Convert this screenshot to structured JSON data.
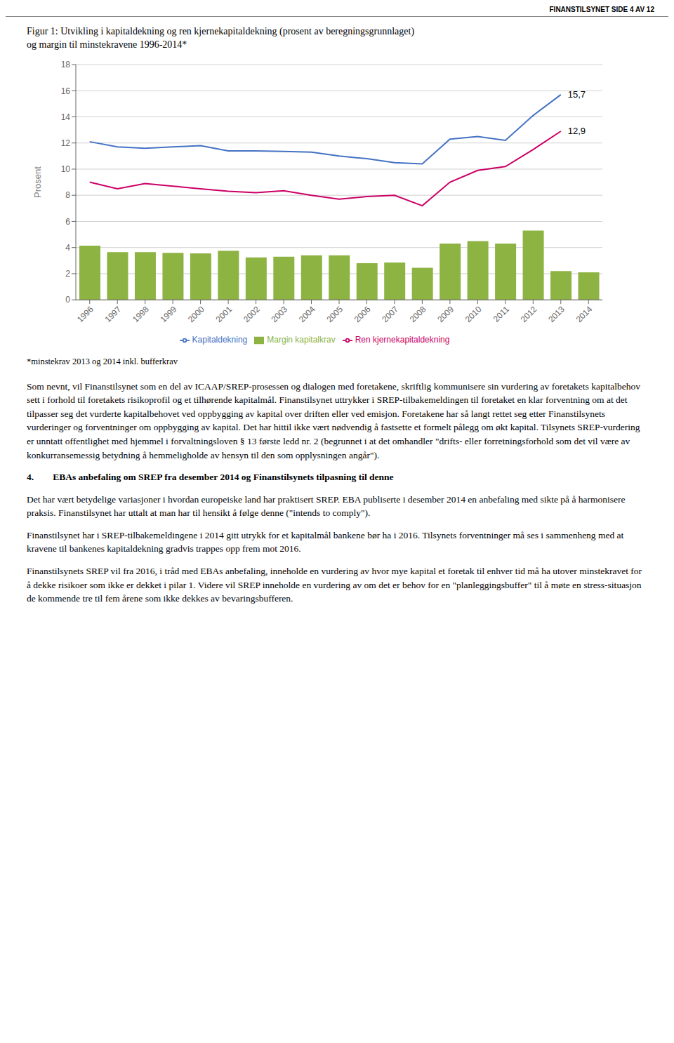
{
  "page": {
    "header": "FINANSTILSYNET SIDE 4 AV 12",
    "footnote": "*minstekrav 2013 og 2014 inkl. bufferkrav",
    "paragraphs_before": [
      "Som nevnt, vil Finanstilsynet som en del av ICAAP/SREP-prosessen og dialogen med foretakene, skriftlig kommunisere sin vurdering av foretakets kapitalbehov sett i forhold til foretakets risikoprofil og et tilhørende kapitalmål.  Finanstilsynet uttrykker i SREP-tilbakemeldingen til foretaket en klar forventning om at det tilpasser seg det vurderte kapitalbehovet ved oppbygging av kapital over driften eller ved emisjon. Foretakene har så langt rettet seg etter Finanstilsynets vurderinger og forventninger om oppbygging av kapital. Det har hittil ikke vært nødvendig å fastsette et formelt pålegg om økt kapital.  Tilsynets SREP-vurdering er unntatt offentlighet med hjemmel i forvaltningsloven § 13 første ledd nr. 2 (begrunnet i at det omhandler \"drifts- eller forretningsforhold som det vil være av konkurransemessig betydning å hemmeligholde av hensyn til den som opplysningen angår\")."
    ],
    "section_title": "4.  EBAs anbefaling om SREP fra desember 2014 og Finanstilsynets tilpasning til denne",
    "paragraphs_after": [
      "Det har vært betydelige variasjoner i hvordan europeiske land har praktisert SREP. EBA publiserte i desember 2014 en anbefaling med sikte på å harmonisere praksis. Finanstilsynet har uttalt at man har til hensikt å følge denne (\"intends to comply\").",
      "Finanstilsynet har i SREP-tilbakemeldingene i 2014 gitt utrykk for et kapitalmål bankene bør ha i 2016. Tilsynets forventninger må ses i sammenheng med at kravene til bankenes kapitaldekning gradvis trappes opp frem mot 2016.",
      "Finanstilsynets SREP vil fra 2016, i tråd med EBAs anbefaling, inneholde en vurdering av hvor mye kapital et foretak til enhver tid må ha utover minstekravet for å dekke risikoer som ikke er dekket i pilar 1. Videre vil SREP inneholde en vurdering av om det er behov for en \"planleggingsbuffer\" til å møte en stress-situasjon de kommende tre til fem årene som ikke dekkes av bevaringsbufferen."
    ]
  },
  "chart_data": {
    "type": "bar",
    "title": "Figur 1: Utvikling i kapitaldekning og ren kjernekapitaldekning (prosent av beregningsgrunnlaget)",
    "subtitle": "og margin til minstekravene 1996-2014*",
    "y_label": "Prosent",
    "categories": [
      "1996",
      "1997",
      "1998",
      "1999",
      "2000",
      "2001",
      "2002",
      "2003",
      "2004",
      "2005",
      "2006",
      "2007",
      "2008",
      "2009",
      "2010",
      "2011",
      "2012",
      "2013",
      "2014"
    ],
    "series": [
      {
        "name": "Margin kapitalkrav",
        "type": "bar",
        "color": "#8DB343",
        "values": [
          4.15,
          3.65,
          3.65,
          3.6,
          3.55,
          3.75,
          3.25,
          3.3,
          3.4,
          3.4,
          2.8,
          2.85,
          2.45,
          4.3,
          4.5,
          4.3,
          5.3,
          2.2,
          2.1
        ]
      },
      {
        "name": "Ren kjernekapitaldekning",
        "type": "line",
        "color": "#CC0066",
        "values": [
          9.0,
          8.5,
          8.9,
          8.7,
          8.5,
          8.3,
          8.2,
          8.35,
          8.0,
          7.7,
          7.9,
          8.0,
          7.2,
          9.0,
          9.9,
          10.2,
          11.5,
          12.9,
          null
        ],
        "value_labels": [
          null,
          null,
          null,
          null,
          null,
          null,
          null,
          null,
          null,
          null,
          null,
          null,
          null,
          null,
          null,
          null,
          null,
          "12,9",
          null
        ]
      },
      {
        "name": "Kapitaldekning",
        "type": "line",
        "color": "#4472C4",
        "values": [
          12.1,
          11.7,
          11.6,
          11.7,
          11.8,
          11.4,
          11.4,
          11.35,
          11.3,
          11.0,
          10.8,
          10.5,
          10.4,
          12.3,
          12.5,
          12.2,
          14.1,
          15.7,
          null
        ],
        "value_labels": [
          null,
          null,
          null,
          null,
          null,
          null,
          null,
          null,
          null,
          null,
          null,
          null,
          null,
          null,
          null,
          null,
          null,
          "15,7",
          null
        ]
      }
    ],
    "ylim": [
      0,
      18
    ],
    "yticks": [
      0,
      2,
      4,
      6,
      8,
      10,
      12,
      14,
      16,
      18
    ],
    "grid": true,
    "legend": "bottom"
  }
}
